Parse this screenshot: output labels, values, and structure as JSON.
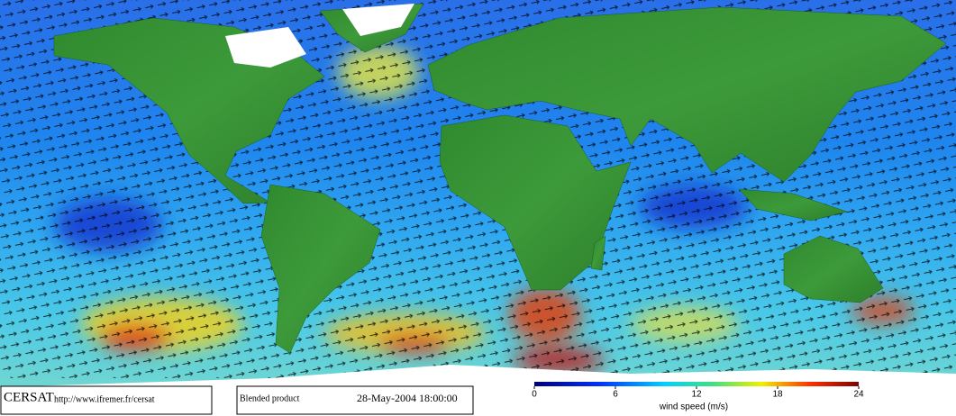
{
  "footer": {
    "logo": "CERSAT",
    "url": "http://www.ifremer.fr/cersat",
    "product": "Blended product",
    "date": "28-May-2004 18:00:00"
  },
  "colorbar": {
    "label": "wind speed (m/s)",
    "lim": [
      0,
      24
    ],
    "ticks": [
      0,
      6,
      12,
      18,
      24
    ]
  }
}
